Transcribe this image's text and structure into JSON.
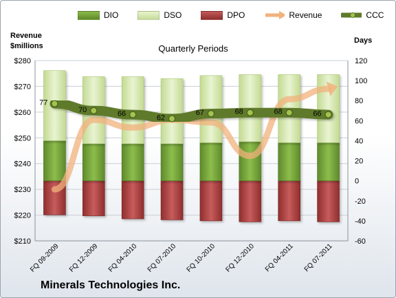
{
  "title": "Quarterly Periods",
  "company": "Minerals Technologies Inc.",
  "left_axis_title": [
    "Revenue",
    "$millions"
  ],
  "right_axis_title": "Days",
  "legend": [
    {
      "label": "DIO",
      "type": "box",
      "color": "#77a33a"
    },
    {
      "label": "DSO",
      "type": "box",
      "color": "#d6e8b0"
    },
    {
      "label": "DPO",
      "type": "box",
      "color": "#b54a4a"
    },
    {
      "label": "Revenue",
      "type": "arrow",
      "color": "#f2b27c"
    },
    {
      "label": "CCC",
      "type": "line",
      "color": "#5f7a2c"
    }
  ],
  "chart_data": {
    "type": "bar",
    "categories": [
      "FQ 09-2009",
      "FQ 12-2009",
      "FQ 04-2010",
      "FQ 07-2010",
      "FQ 10-2010",
      "FQ 12-2010",
      "FQ 04-2011",
      "FQ 07-2011"
    ],
    "series": [
      {
        "name": "DIO",
        "values": [
          40,
          37,
          37,
          37,
          38,
          39,
          38,
          38
        ]
      },
      {
        "name": "DSO",
        "values": [
          70,
          67,
          67,
          65,
          67,
          67,
          68,
          68
        ]
      },
      {
        "name": "DPO",
        "values": [
          -34,
          -35,
          -38,
          -39,
          -40,
          -41,
          -40,
          -41
        ]
      },
      {
        "name": "Revenue",
        "values": [
          230,
          257,
          254,
          257,
          256,
          243,
          265,
          269
        ]
      },
      {
        "name": "CCC",
        "values": [
          77,
          70,
          66,
          62,
          67,
          68,
          68,
          66
        ],
        "labels": [
          "77",
          "70",
          "66",
          "62",
          "67",
          "68",
          "68",
          "66"
        ]
      }
    ],
    "left_axis": {
      "min": 210,
      "max": 280,
      "step": 10,
      "ticks": [
        "$210",
        "$220",
        "$230",
        "$240",
        "$250",
        "$260",
        "$270",
        "$280"
      ]
    },
    "right_axis": {
      "min": -60,
      "max": 120,
      "step": 20,
      "ticks": [
        "-60",
        "-40",
        "-20",
        "0",
        "20",
        "40",
        "60",
        "80",
        "100",
        "120"
      ]
    },
    "colors": {
      "dio": "#77a33a",
      "dso": "#d6e8b0",
      "dpo": "#b54a4a",
      "revenue": "#f2b27c",
      "ccc": "#5f7a2c",
      "ccc_point": "#a4c24f"
    }
  }
}
